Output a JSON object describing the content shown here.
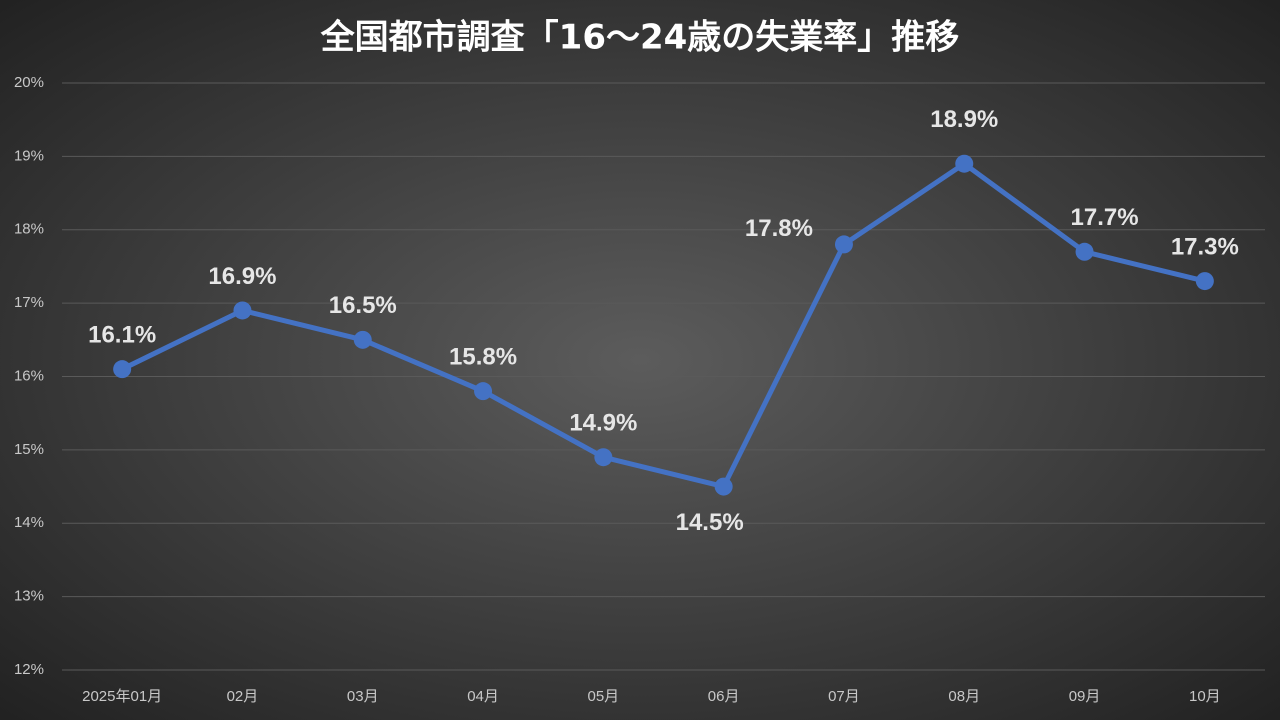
{
  "chart_data": {
    "type": "line",
    "title": "全国都市調査「16～24歳の失業率」推移",
    "categories": [
      "2025年01月",
      "02月",
      "03月",
      "04月",
      "05月",
      "06月",
      "07月",
      "08月",
      "09月",
      "10月"
    ],
    "series": [
      {
        "color": "#4472c4",
        "values": [
          16.1,
          16.9,
          16.5,
          15.8,
          14.9,
          14.5,
          17.8,
          18.9,
          17.7,
          17.3
        ],
        "value_labels": [
          "16.1%",
          "16.9%",
          "16.5%",
          "15.8%",
          "14.9%",
          "14.5%",
          "17.8%",
          "18.9%",
          "17.7%",
          "17.3%"
        ]
      }
    ],
    "ylim": [
      12,
      20
    ],
    "yticks": [
      {
        "value": 12,
        "label": "12%"
      },
      {
        "value": 13,
        "label": "13%"
      },
      {
        "value": 14,
        "label": "14%"
      },
      {
        "value": 15,
        "label": "15%"
      },
      {
        "value": 16,
        "label": "16%"
      },
      {
        "value": 17,
        "label": "17%"
      },
      {
        "value": 18,
        "label": "18%"
      },
      {
        "value": 19,
        "label": "19%"
      },
      {
        "value": 20,
        "label": "20%"
      }
    ],
    "grid": true,
    "highlight_color": "#ff0000"
  }
}
